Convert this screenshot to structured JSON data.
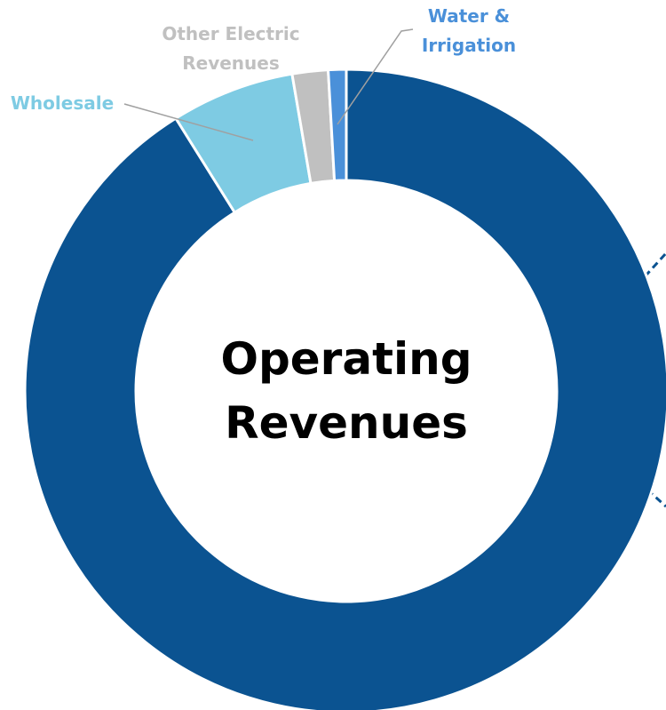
{
  "chart_data": {
    "type": "donut",
    "center_text": "Operating Revenues",
    "categories": [
      null,
      "Wholesale",
      "Other Electric Revenues",
      "Water & Irrigation"
    ],
    "values": [
      91.1,
      6.2,
      1.8,
      0.9
    ],
    "colors": [
      "#0b5391",
      "#7ecbe3",
      "#c0c0c0",
      "#4a90d9"
    ]
  }
}
